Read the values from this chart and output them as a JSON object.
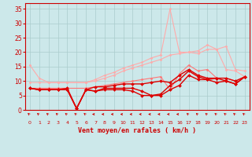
{
  "xlabel": "Vent moyen/en rafales ( km/h )",
  "bg_color": "#cce8ea",
  "grid_color": "#aacccc",
  "x": [
    0,
    1,
    2,
    3,
    4,
    5,
    6,
    7,
    8,
    9,
    10,
    11,
    12,
    13,
    14,
    15,
    16,
    17,
    18,
    19,
    20,
    21,
    22,
    23
  ],
  "ylim": [
    0,
    37
  ],
  "yticks": [
    0,
    5,
    10,
    15,
    20,
    25,
    30,
    35
  ],
  "series": [
    {
      "color": "#ffaaaa",
      "lw": 0.8,
      "marker": "D",
      "ms": 1.5,
      "values": [
        15.5,
        11.0,
        9.5,
        9.5,
        9.5,
        null,
        9.5,
        10.5,
        12.0,
        13.0,
        14.5,
        15.5,
        16.5,
        18.0,
        19.0,
        35.0,
        20.0,
        20.0,
        20.5,
        22.5,
        21.0,
        22.0,
        14.0,
        13.5
      ]
    },
    {
      "color": "#ffaaaa",
      "lw": 0.8,
      "marker": "D",
      "ms": 1.5,
      "values": [
        9.5,
        9.5,
        9.5,
        9.5,
        9.5,
        null,
        9.5,
        10.0,
        11.0,
        12.0,
        13.5,
        14.5,
        15.5,
        16.5,
        17.5,
        19.0,
        19.5,
        20.0,
        19.5,
        21.0,
        21.0,
        14.0,
        13.5,
        11.5
      ]
    },
    {
      "color": "#ff7777",
      "lw": 0.8,
      "marker": "D",
      "ms": 1.5,
      "values": [
        7.5,
        7.5,
        7.5,
        7.5,
        7.5,
        null,
        7.5,
        8.0,
        8.5,
        9.0,
        9.5,
        10.0,
        10.5,
        11.0,
        11.5,
        7.0,
        12.5,
        15.5,
        13.5,
        14.0,
        11.0,
        11.0,
        10.0,
        11.5
      ]
    },
    {
      "color": "#dd0000",
      "lw": 1.0,
      "marker": "D",
      "ms": 2.0,
      "values": [
        7.5,
        7.0,
        7.0,
        7.0,
        7.0,
        0.5,
        7.0,
        6.5,
        7.0,
        7.0,
        7.0,
        6.5,
        5.0,
        5.0,
        5.0,
        7.0,
        8.5,
        12.0,
        10.5,
        10.5,
        9.5,
        10.0,
        9.0,
        11.5
      ]
    },
    {
      "color": "#dd0000",
      "lw": 1.0,
      "marker": "D",
      "ms": 2.0,
      "values": [
        7.5,
        7.0,
        7.0,
        7.0,
        7.0,
        0.5,
        7.0,
        6.5,
        7.5,
        7.5,
        7.5,
        7.5,
        6.5,
        5.0,
        5.5,
        8.5,
        10.5,
        13.5,
        11.5,
        10.5,
        11.0,
        10.0,
        9.0,
        11.5
      ]
    },
    {
      "color": "#dd0000",
      "lw": 1.0,
      "marker": "D",
      "ms": 2.0,
      "values": [
        7.5,
        7.0,
        7.0,
        7.0,
        7.5,
        0.5,
        7.0,
        8.0,
        8.0,
        8.5,
        9.0,
        9.0,
        9.0,
        9.5,
        10.0,
        9.5,
        12.0,
        14.0,
        12.0,
        11.0,
        11.0,
        11.0,
        10.0,
        11.5
      ]
    }
  ],
  "arrow_dirs": [
    225,
    225,
    225,
    225,
    225,
    225,
    225,
    270,
    270,
    270,
    270,
    270,
    270,
    270,
    270,
    270,
    270,
    225,
    225,
    225,
    225,
    225,
    225,
    225
  ]
}
